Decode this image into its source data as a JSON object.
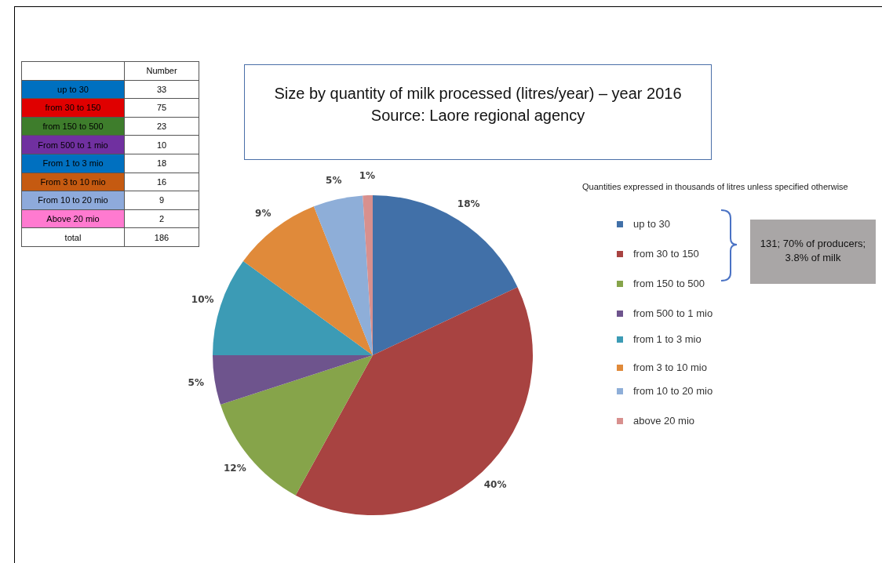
{
  "chart_data": {
    "type": "pie",
    "title": "Size by quantity of milk processed (litres/year) – year 2016",
    "subtitle": "Source: Laore regional agency",
    "categories": [
      "up to 30",
      "from 30 to 150",
      "from 150 to 500",
      "from 500 to 1 mio",
      "from 1 to 3 mio",
      "from 3 to 10 mio",
      "from 10 to 20 mio",
      "above 20 mio"
    ],
    "values": [
      18,
      40,
      12,
      5,
      10,
      9,
      5,
      1
    ],
    "value_labels": [
      "18%",
      "40%",
      "12%",
      "5%",
      "10%",
      "9%",
      "5%",
      "1%"
    ],
    "colors": [
      "#4170a8",
      "#a84341",
      "#86a44a",
      "#6e548d",
      "#3c9bb5",
      "#e08a3a",
      "#8eaed8",
      "#d8908e"
    ],
    "legend": "right",
    "annotations": [
      "Quantities expressed in thousands of litres unless specified otherwise",
      "131; 70% of producers; 3.8% of milk",
      "Number",
      "up to 30",
      "from 30 to 150",
      "from 150 to 500",
      "From 500 to 1 mio",
      "From 1 to 3 mio",
      "From 3 to 10 mio",
      "From 10 to 20 mio",
      "Above 20 mio",
      "total",
      "33",
      "75",
      "23",
      "10",
      "18",
      "16",
      "9",
      "2",
      "186"
    ]
  }
}
